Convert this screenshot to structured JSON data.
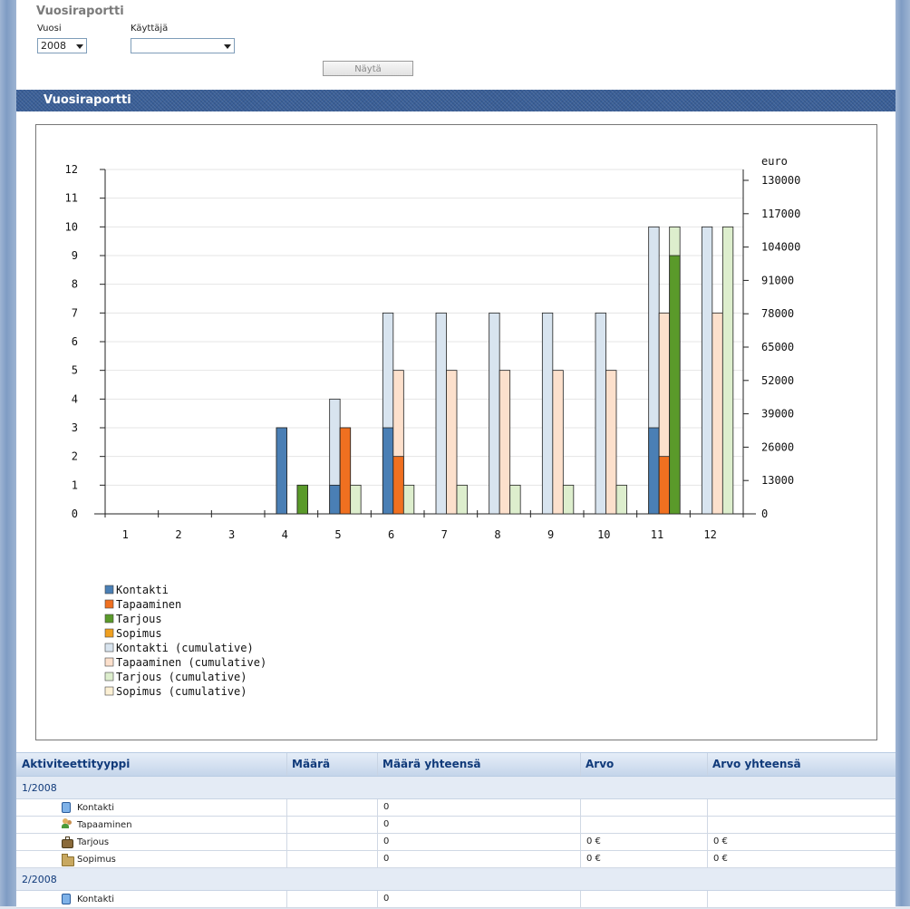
{
  "filter": {
    "title": "Vuosiraportti",
    "year_label": "Vuosi",
    "year_value": "2008",
    "user_label": "Käyttäjä",
    "user_value": "",
    "show_button": "Näytä"
  },
  "section": {
    "title": "Vuosiraportti"
  },
  "chart_data": {
    "type": "bar",
    "categories": [
      "1",
      "2",
      "3",
      "4",
      "5",
      "6",
      "7",
      "8",
      "9",
      "10",
      "11",
      "12"
    ],
    "ylim": [
      0,
      12
    ],
    "y_ticks": [
      "0",
      "1",
      "2",
      "3",
      "4",
      "5",
      "6",
      "7",
      "8",
      "9",
      "10",
      "11",
      "12"
    ],
    "y2_label": "euro",
    "y2lim": [
      0,
      130000
    ],
    "y2_ticks": [
      "0",
      "13000",
      "26000",
      "39000",
      "52000",
      "65000",
      "78000",
      "91000",
      "104000",
      "117000",
      "130000"
    ],
    "legend_position": "bottom-left",
    "series": [
      {
        "name": "Kontakti",
        "color": "#4a7fb5",
        "values": [
          0,
          0,
          0,
          3,
          1,
          3,
          0,
          0,
          0,
          0,
          3,
          0
        ]
      },
      {
        "name": "Tapaaminen",
        "color": "#f07020",
        "values": [
          0,
          0,
          0,
          0,
          3,
          2,
          0,
          0,
          0,
          0,
          2,
          0
        ]
      },
      {
        "name": "Tarjous",
        "color": "#5a9a2a",
        "values": [
          0,
          0,
          0,
          1,
          0,
          0,
          0,
          0,
          0,
          0,
          9,
          0
        ]
      },
      {
        "name": "Sopimus",
        "color": "#f0a020",
        "values": [
          0,
          0,
          0,
          0,
          0,
          0,
          0,
          0,
          0,
          0,
          0,
          0
        ]
      },
      {
        "name": "Kontakti (cumulative)",
        "color": "#d8e4ef",
        "values": [
          0,
          0,
          0,
          3,
          4,
          7,
          7,
          7,
          7,
          7,
          10,
          10
        ]
      },
      {
        "name": "Tapaaminen (cumulative)",
        "color": "#fce0cc",
        "values": [
          0,
          0,
          0,
          0,
          3,
          5,
          5,
          5,
          5,
          5,
          7,
          7
        ]
      },
      {
        "name": "Tarjous (cumulative)",
        "color": "#ddeecd",
        "values": [
          0,
          0,
          0,
          1,
          1,
          1,
          1,
          1,
          1,
          1,
          10,
          10
        ]
      },
      {
        "name": "Sopimus (cumulative)",
        "color": "#fcf0d4",
        "values": [
          0,
          0,
          0,
          0,
          0,
          0,
          0,
          0,
          0,
          0,
          0,
          0
        ]
      }
    ]
  },
  "table": {
    "headers": [
      "Aktiviteettityyppi",
      "Määrä",
      "Määrä yhteensä",
      "Arvo",
      "Arvo yhteensä"
    ],
    "groups": [
      {
        "label": "1/2008",
        "rows": [
          {
            "icon": "contact-icon",
            "name": "Kontakti",
            "maara": "",
            "yhteensa": "0",
            "arvo": "",
            "arvo_yhteensa": ""
          },
          {
            "icon": "meeting-icon",
            "name": "Tapaaminen",
            "maara": "",
            "yhteensa": "0",
            "arvo": "",
            "arvo_yhteensa": ""
          },
          {
            "icon": "briefcase-icon",
            "name": "Tarjous",
            "maara": "",
            "yhteensa": "0",
            "arvo": "0 €",
            "arvo_yhteensa": "0 €"
          },
          {
            "icon": "folder-icon",
            "name": "Sopimus",
            "maara": "",
            "yhteensa": "0",
            "arvo": "0 €",
            "arvo_yhteensa": "0 €"
          }
        ]
      },
      {
        "label": "2/2008",
        "rows": [
          {
            "icon": "contact-icon",
            "name": "Kontakti",
            "maara": "",
            "yhteensa": "0",
            "arvo": "",
            "arvo_yhteensa": ""
          }
        ]
      }
    ]
  }
}
